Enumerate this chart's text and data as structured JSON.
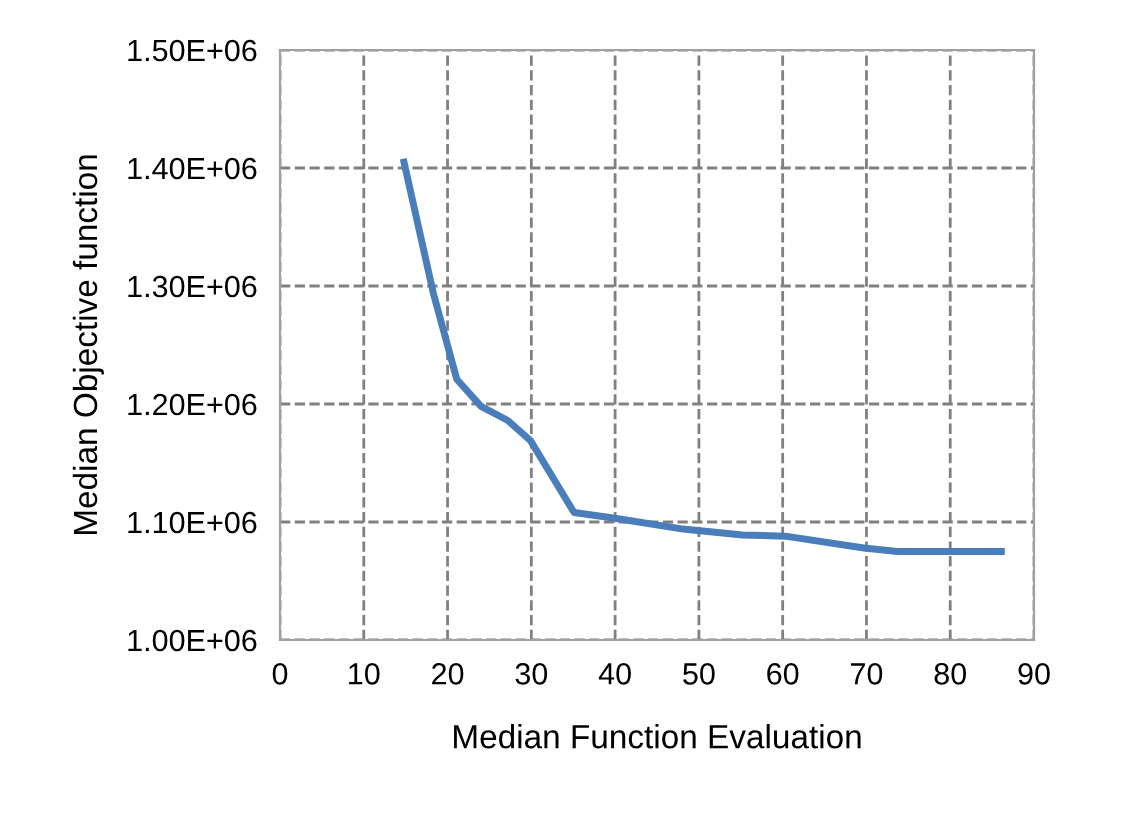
{
  "chart_data": {
    "type": "line",
    "xlabel": "Median Function Evaluation",
    "ylabel": "Median Objective function",
    "series": [
      {
        "color": "#4a7ebb",
        "x": [
          14.8,
          18.3,
          21.1,
          24.0,
          27.2,
          29.9,
          35.1,
          40.2,
          48.1,
          55.2,
          60.3,
          69.7,
          73.7,
          86.1
        ],
        "values": [
          1405000,
          1294000,
          1221000,
          1198000,
          1186000,
          1169000,
          1108000,
          1103000,
          1094000,
          1089000,
          1088000,
          1078000,
          1075000,
          1075000
        ]
      }
    ],
    "xlim": [
      0,
      90
    ],
    "xticks": [
      0,
      10,
      20,
      30,
      40,
      50,
      60,
      70,
      80,
      90
    ],
    "ylim": [
      1000000,
      1500000
    ],
    "yticks": [
      {
        "value": 1000000,
        "label": "1.00E+06"
      },
      {
        "value": 1100000,
        "label": "1.10E+06"
      },
      {
        "value": 1200000,
        "label": "1.20E+06"
      },
      {
        "value": 1300000,
        "label": "1.30E+06"
      },
      {
        "value": 1400000,
        "label": "1.40E+06"
      },
      {
        "value": 1500000,
        "label": "1.50E+06"
      }
    ],
    "grid": true,
    "marker": "none",
    "line_style": "solid"
  }
}
